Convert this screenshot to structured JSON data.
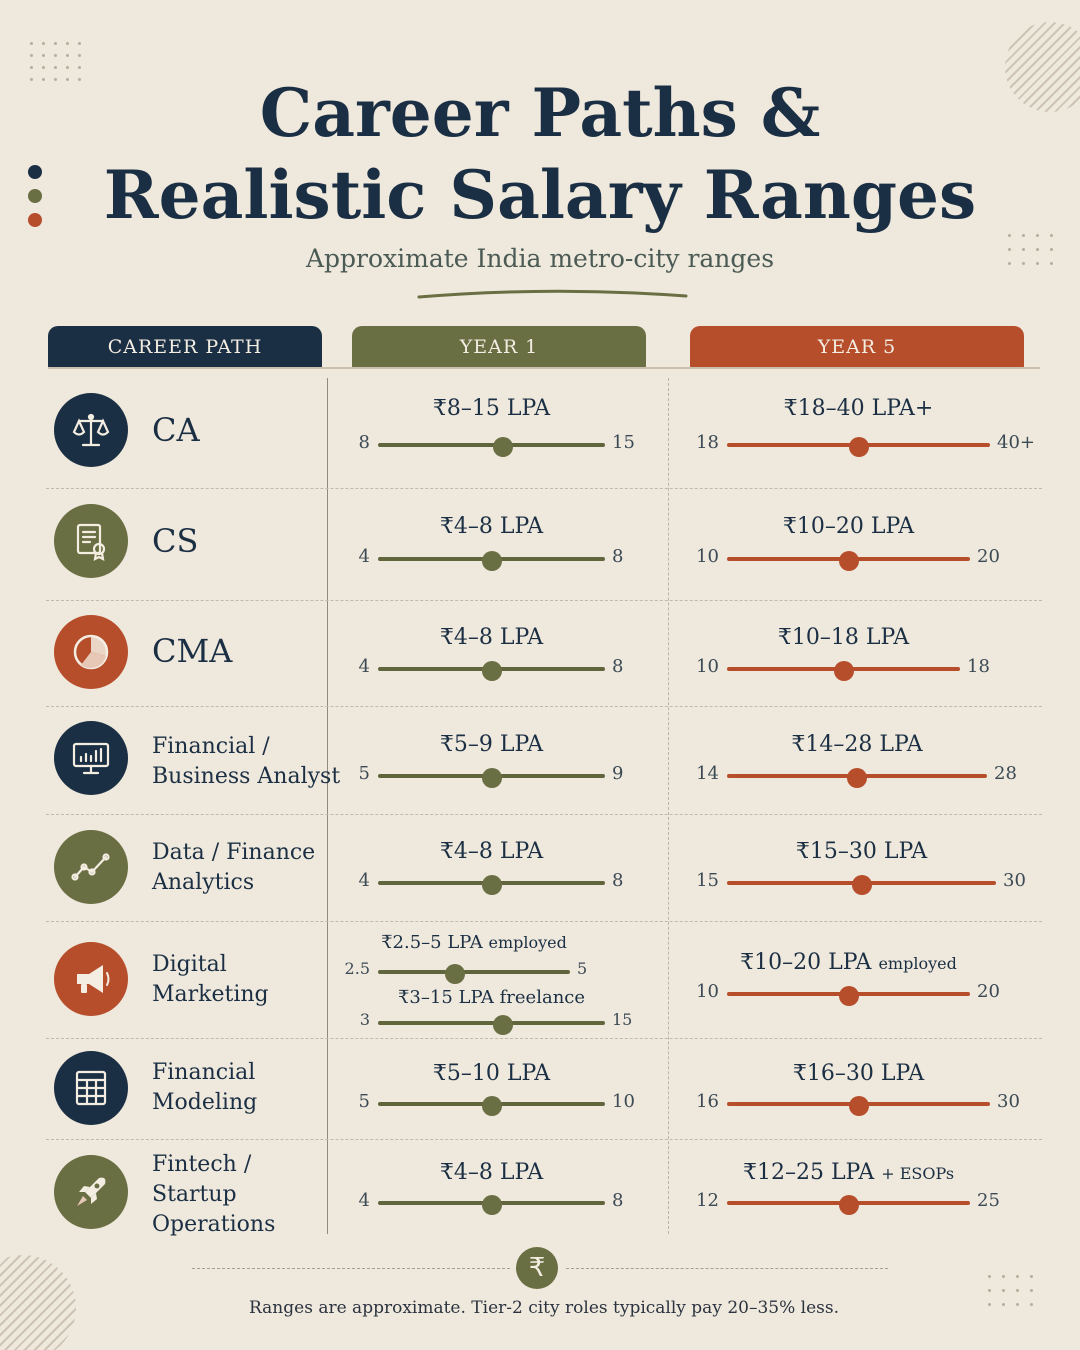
{
  "title_lines": [
    "Career Paths &",
    "Realistic Salary Ranges"
  ],
  "subtitle": "Approximate India metro-city ranges",
  "headers": {
    "career": "CAREER PATH",
    "year1": "YEAR 1",
    "year5": "YEAR 5"
  },
  "colors": {
    "navy": "#1b2f44",
    "olive": "#6a6e43",
    "rust": "#b64e2c",
    "background": "#efe8dc"
  },
  "rows": [
    {
      "career": "CA",
      "icon": "scales-icon",
      "icon_color": "#1b2f44",
      "year1": {
        "label": "₹8–15 LPA",
        "min": "8",
        "max": "15",
        "marker": 0.55
      },
      "year5": {
        "label": "₹18–40 LPA+",
        "min": "18",
        "max": "40+",
        "marker": 0.5
      }
    },
    {
      "career": "CS",
      "icon": "certificate-icon",
      "icon_color": "#6a6e43",
      "year1": {
        "label": "₹4–8 LPA",
        "min": "4",
        "max": "8",
        "marker": 0.5
      },
      "year5": {
        "label": "₹10–20 LPA",
        "min": "10",
        "max": "20",
        "marker": 0.5
      }
    },
    {
      "career": "CMA",
      "icon": "pie-chart-icon",
      "icon_color": "#b64e2c",
      "year1": {
        "label": "₹4–8 LPA",
        "min": "4",
        "max": "8",
        "marker": 0.5
      },
      "year5": {
        "label": "₹10–18 LPA",
        "min": "10",
        "max": "18",
        "marker": 0.5
      }
    },
    {
      "career": "Financial / Business Analyst",
      "career_lines": [
        "Financial /",
        "Business Analyst"
      ],
      "icon": "monitor-chart-icon",
      "icon_color": "#1b2f44",
      "year1": {
        "label": "₹5–9 LPA",
        "min": "5",
        "max": "9",
        "marker": 0.5
      },
      "year5": {
        "label": "₹14–28 LPA",
        "min": "14",
        "max": "28",
        "marker": 0.5
      }
    },
    {
      "career": "Data / Finance Analytics",
      "career_lines": [
        "Data / Finance",
        "Analytics"
      ],
      "icon": "trend-line-icon",
      "icon_color": "#6a6e43",
      "year1": {
        "label": "₹4–8 LPA",
        "min": "4",
        "max": "8",
        "marker": 0.5
      },
      "year5": {
        "label": "₹15–30 LPA",
        "min": "15",
        "max": "30",
        "marker": 0.5
      }
    },
    {
      "career": "Digital Marketing",
      "career_lines": [
        "Digital",
        "Marketing"
      ],
      "icon": "megaphone-icon",
      "icon_color": "#b64e2c",
      "year1": {
        "label": "₹2.5–5 LPA",
        "suffix": "employed",
        "min": "2.5",
        "max": "5",
        "marker": 0.4,
        "freelance": {
          "label": "₹3–15 LPA freelance",
          "min": "3",
          "max": "15",
          "marker": 0.55
        }
      },
      "year5": {
        "label": "₹10–20 LPA",
        "suffix": "employed",
        "min": "10",
        "max": "20",
        "marker": 0.5
      }
    },
    {
      "career": "Financial Modeling",
      "career_lines": [
        "Financial",
        "Modeling"
      ],
      "icon": "spreadsheet-icon",
      "icon_color": "#1b2f44",
      "year1": {
        "label": "₹5–10 LPA",
        "min": "5",
        "max": "10",
        "marker": 0.5
      },
      "year5": {
        "label": "₹16–30 LPA",
        "min": "16",
        "max": "30",
        "marker": 0.5
      }
    },
    {
      "career": "Fintech / Startup Operations",
      "career_lines": [
        "Fintech /",
        "Startup",
        "Operations"
      ],
      "icon": "rocket-icon",
      "icon_color": "#6a6e43",
      "year1": {
        "label": "₹4–8 LPA",
        "min": "4",
        "max": "8",
        "marker": 0.5
      },
      "year5": {
        "label": "₹12–25 LPA",
        "suffix": "+ ESOPs",
        "min": "12",
        "max": "25",
        "marker": 0.5
      }
    }
  ],
  "footer_icon": "rupee-icon",
  "footer_symbol": "₹",
  "footnote": "Ranges are approximate. Tier-2 city roles typically pay 20–35% less."
}
